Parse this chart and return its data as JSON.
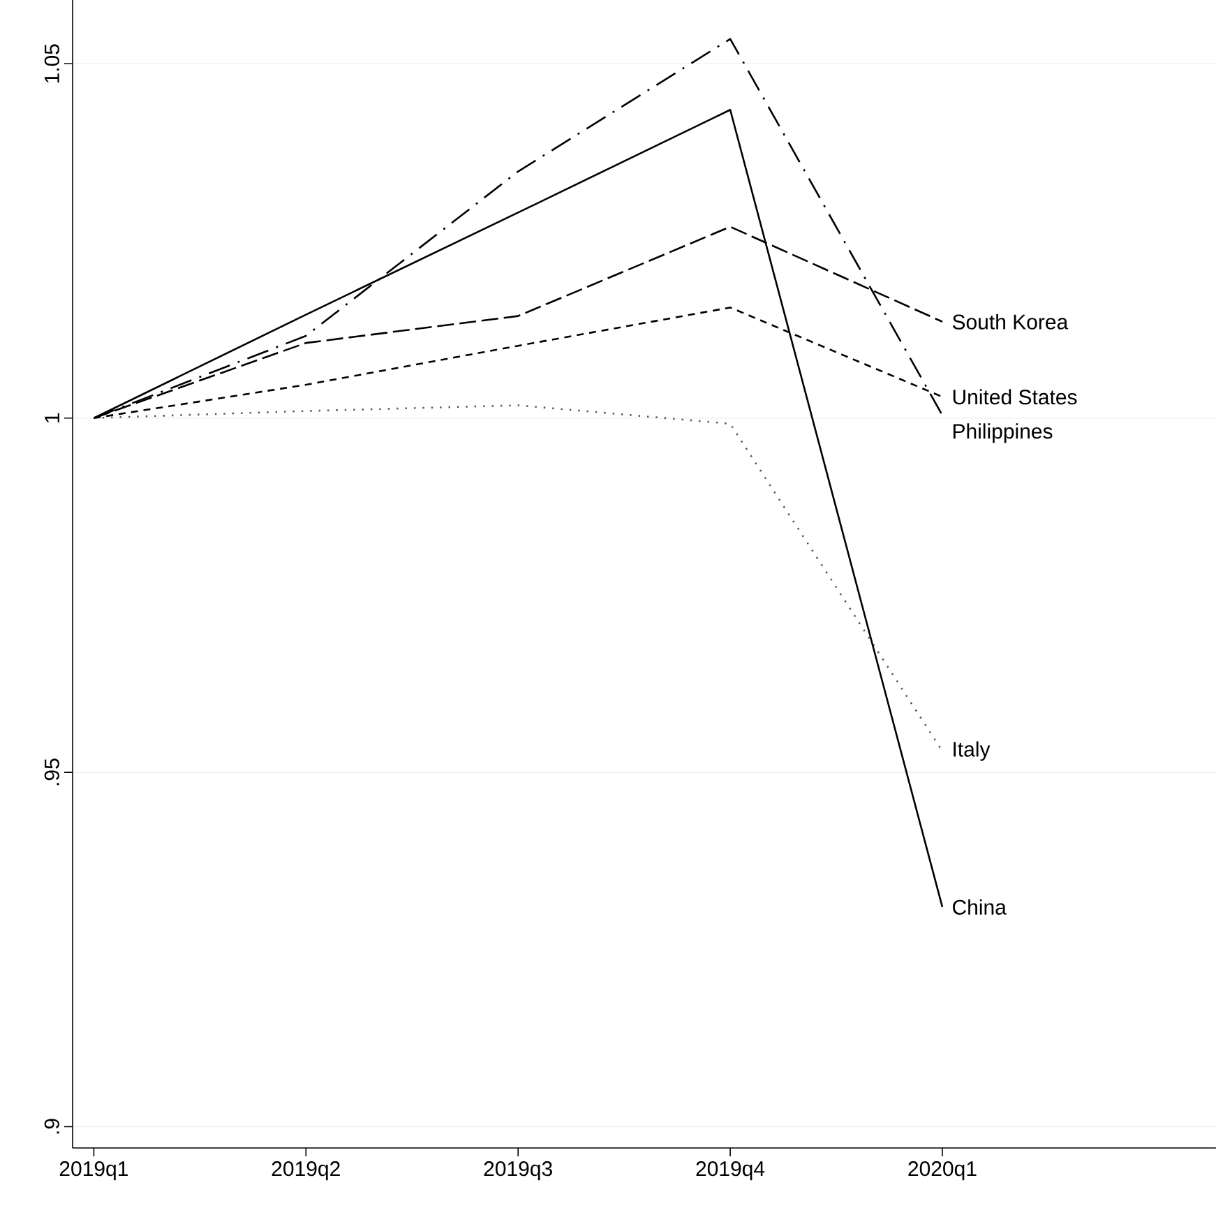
{
  "chart_data": {
    "type": "line",
    "categories": [
      "2019q1",
      "2019q2",
      "2019q3",
      "2019q4",
      "2020q1"
    ],
    "series": [
      {
        "name": "South Korea",
        "color": "#000000",
        "line_style": "longdash",
        "values": [
          1,
          1.0106,
          1.0144,
          1.027,
          1.0136
        ]
      },
      {
        "name": "United States",
        "color": "#000000",
        "line_style": "dashed",
        "values": [
          1,
          1.0047,
          1.0102,
          1.0156,
          1.003
        ]
      },
      {
        "name": "Philippines",
        "color": "#000000",
        "line_style": "dashdot",
        "values": [
          1,
          1.0116,
          1.0348,
          1.0535,
          1.0004
        ]
      },
      {
        "name": "Italy",
        "color": "#555555",
        "line_style": "dotted",
        "values": [
          1,
          1.001,
          1.0018,
          0.9992,
          0.953
        ]
      },
      {
        "name": "China",
        "color": "#000000",
        "line_style": "solid",
        "values": [
          1,
          1.0146,
          1.029,
          1.0435,
          0.931
        ]
      }
    ],
    "ylim": [
      0.897,
      1.059
    ],
    "yticks": [
      {
        "value": 0.9,
        "label": ".9"
      },
      {
        "value": 0.95,
        "label": ".95"
      },
      {
        "value": 1,
        "label": "1"
      },
      {
        "value": 1.05,
        "label": "1.05"
      }
    ],
    "grid": "y",
    "legend": false,
    "marker": "none"
  }
}
